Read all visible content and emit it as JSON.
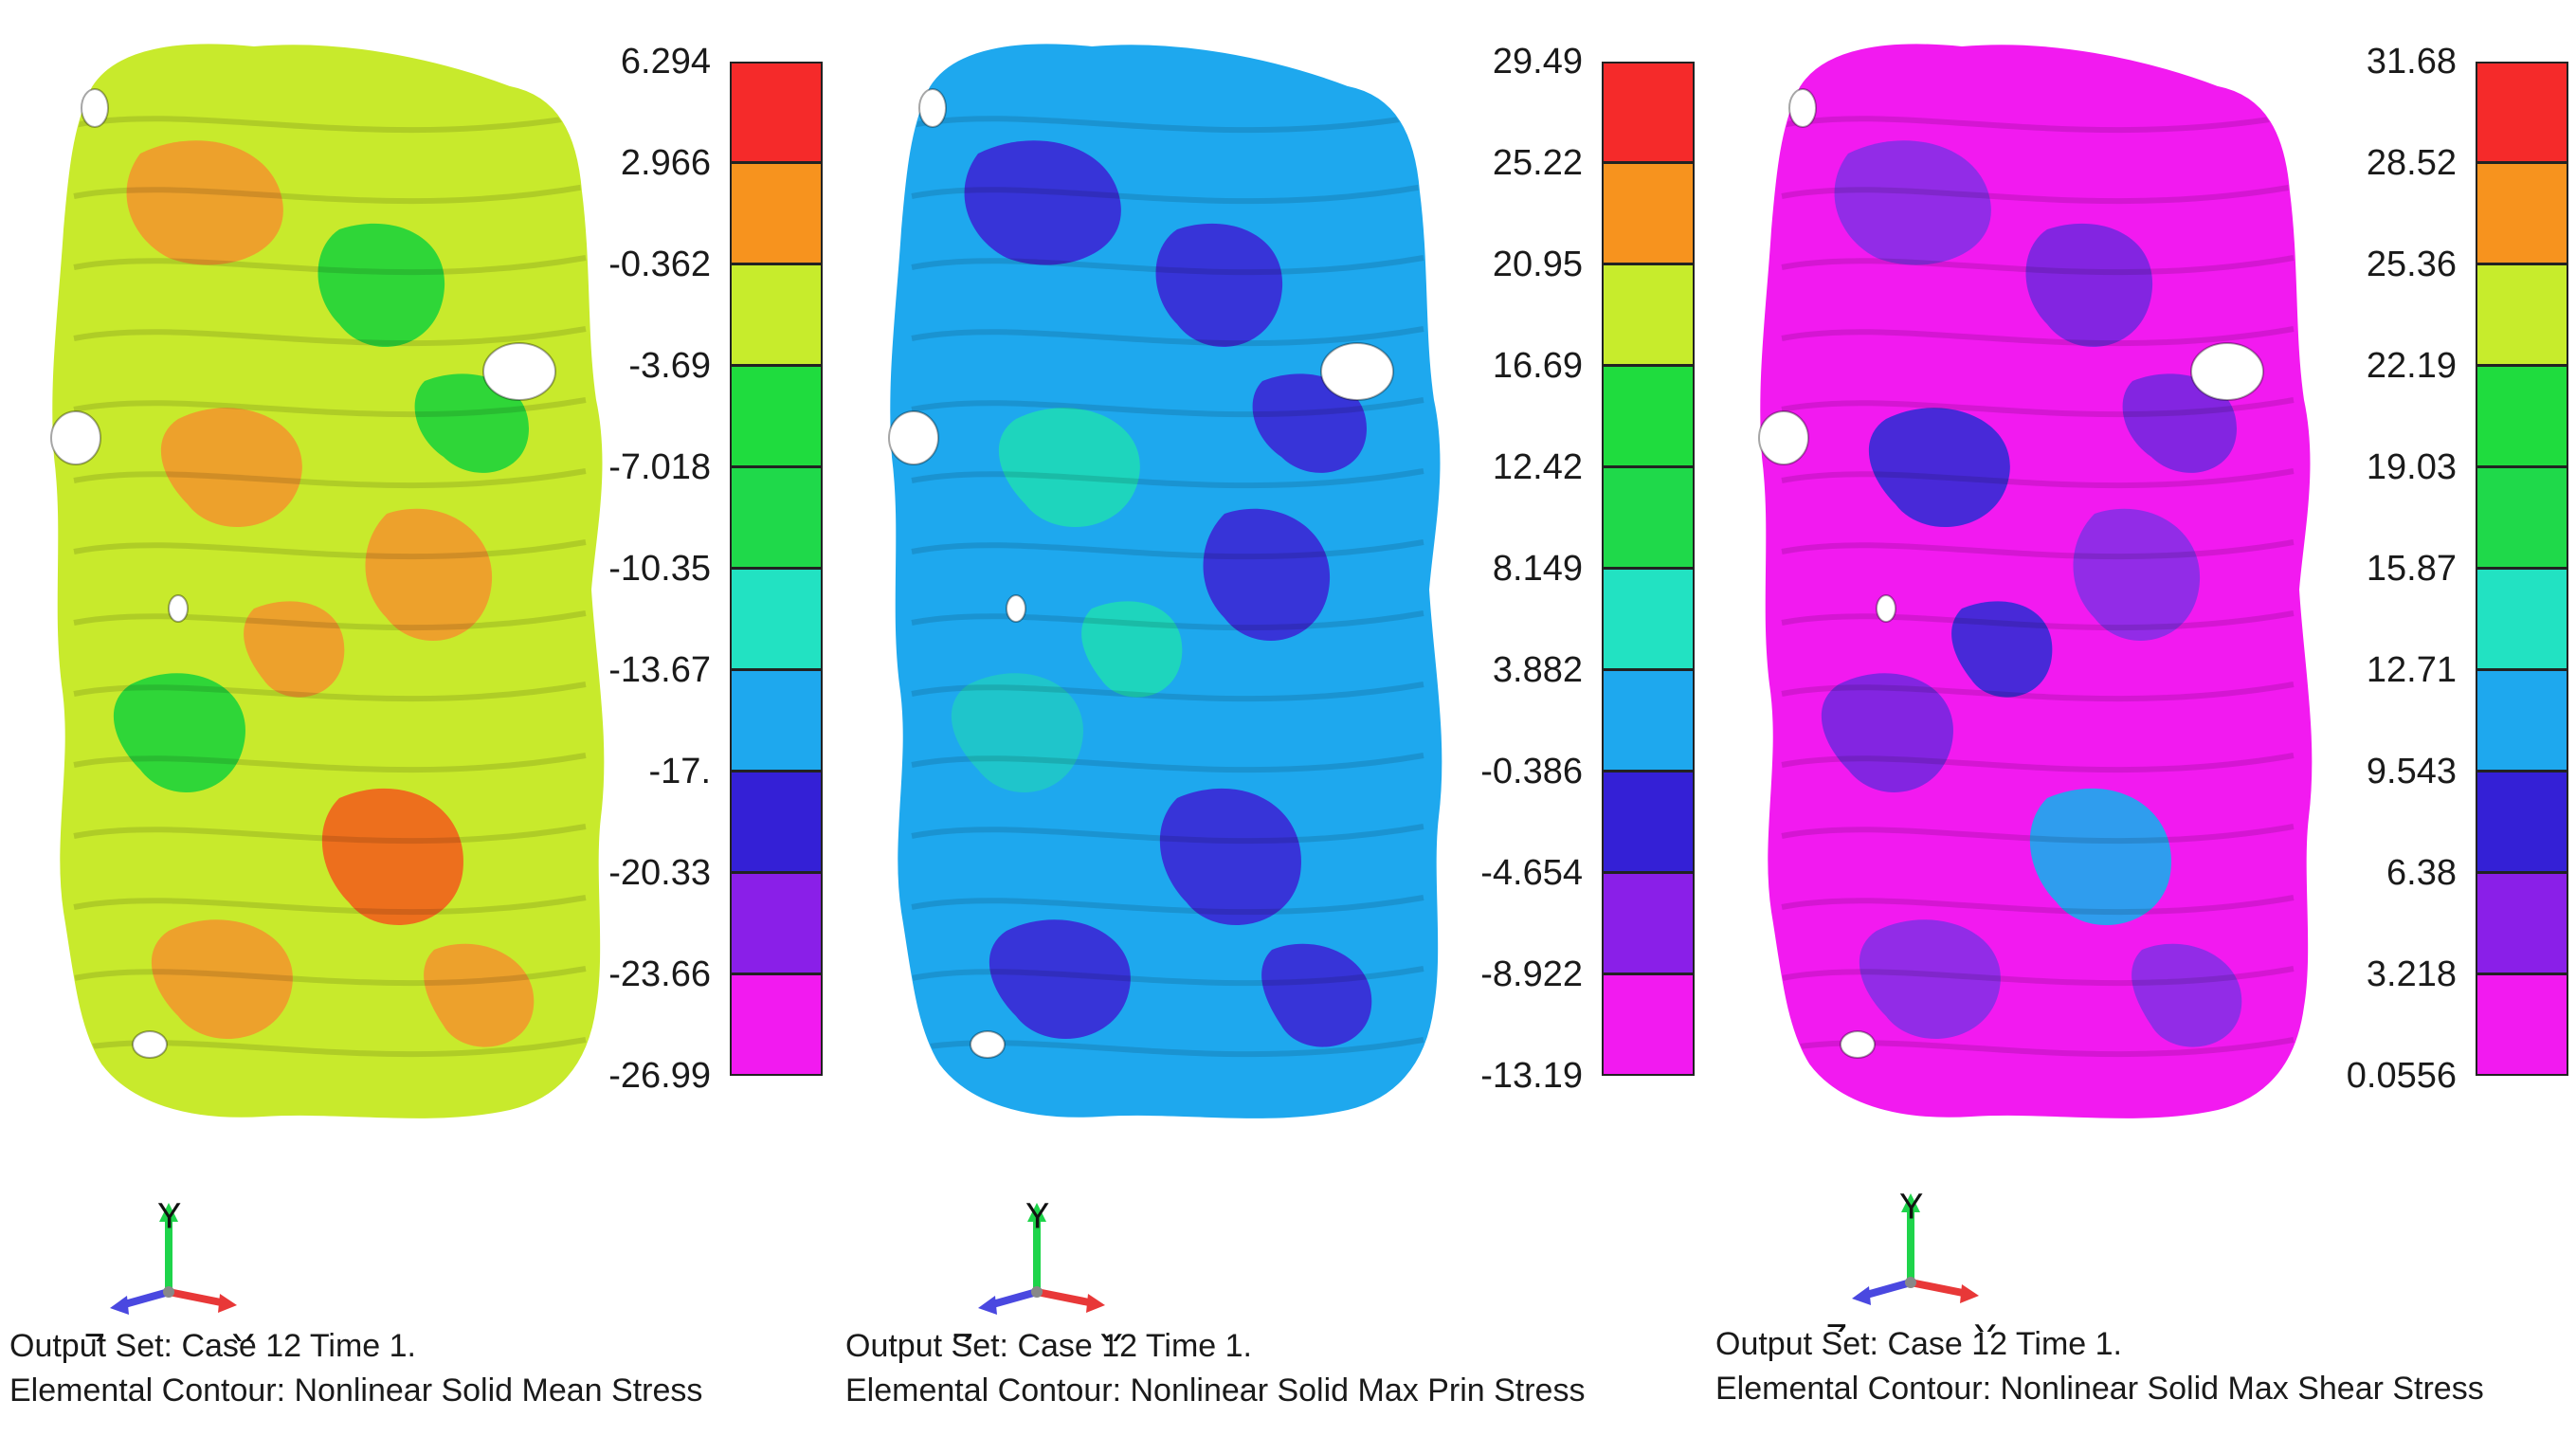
{
  "panels": [
    {
      "key": "mean",
      "scale": [
        "6.294",
        "2.966",
        "-0.362",
        "-3.69",
        "-7.018",
        "-10.35",
        "-13.67",
        "-17.",
        "-20.33",
        "-23.66",
        "-26.99"
      ],
      "caption_line1": "Output Set: Case 12 Time 1.",
      "caption_line2": "Elemental Contour: Nonlinear Solid Mean Stress",
      "base_color": "#c8ea2c",
      "patch_colors": [
        "#f09a2c",
        "#22d43a",
        "#f09a2c",
        "#f09a2c",
        "#22d43a",
        "#f0641c"
      ]
    },
    {
      "key": "maxprin",
      "scale": [
        "29.49",
        "25.22",
        "20.95",
        "16.69",
        "12.42",
        "8.149",
        "3.882",
        "-0.386",
        "-4.654",
        "-8.922",
        "-13.19"
      ],
      "caption_line1": "Output Set: Case 12 Time 1.",
      "caption_line2": "Elemental Contour: Nonlinear Solid Max Prin Stress",
      "base_color": "#1ea8ee",
      "patch_colors": [
        "#3a2ad6",
        "#3a2ad6",
        "#1ed9b8",
        "#3a2ad6",
        "#20c8c8",
        "#3a2ad6"
      ]
    },
    {
      "key": "maxshear",
      "scale": [
        "31.68",
        "28.52",
        "25.36",
        "22.19",
        "19.03",
        "15.87",
        "12.71",
        "9.543",
        "6.38",
        "3.218",
        "0.0556"
      ],
      "caption_line1": "Output Set: Case 12 Time 1.",
      "caption_line2": "Elemental Contour: Nonlinear Solid Max Shear Stress",
      "base_color": "#f21af0",
      "patch_colors": [
        "#8a2ee6",
        "#7a26e0",
        "#3a2ad6",
        "#8a2ee6",
        "#7a26e0",
        "#1ea8ee"
      ]
    }
  ],
  "colorbar_colors": [
    "#f52a2a",
    "#f7931e",
    "#c7ec2c",
    "#1fdc3e",
    "#1fd94a",
    "#22e2c2",
    "#1ea8ee",
    "#3420d6",
    "#8a1fe8",
    "#f21af0"
  ],
  "axis_labels": {
    "x": "X",
    "y": "Y",
    "z": "Z"
  },
  "axis_colors": {
    "x": "#e83838",
    "y": "#1ed44a",
    "z": "#4a48e0"
  }
}
